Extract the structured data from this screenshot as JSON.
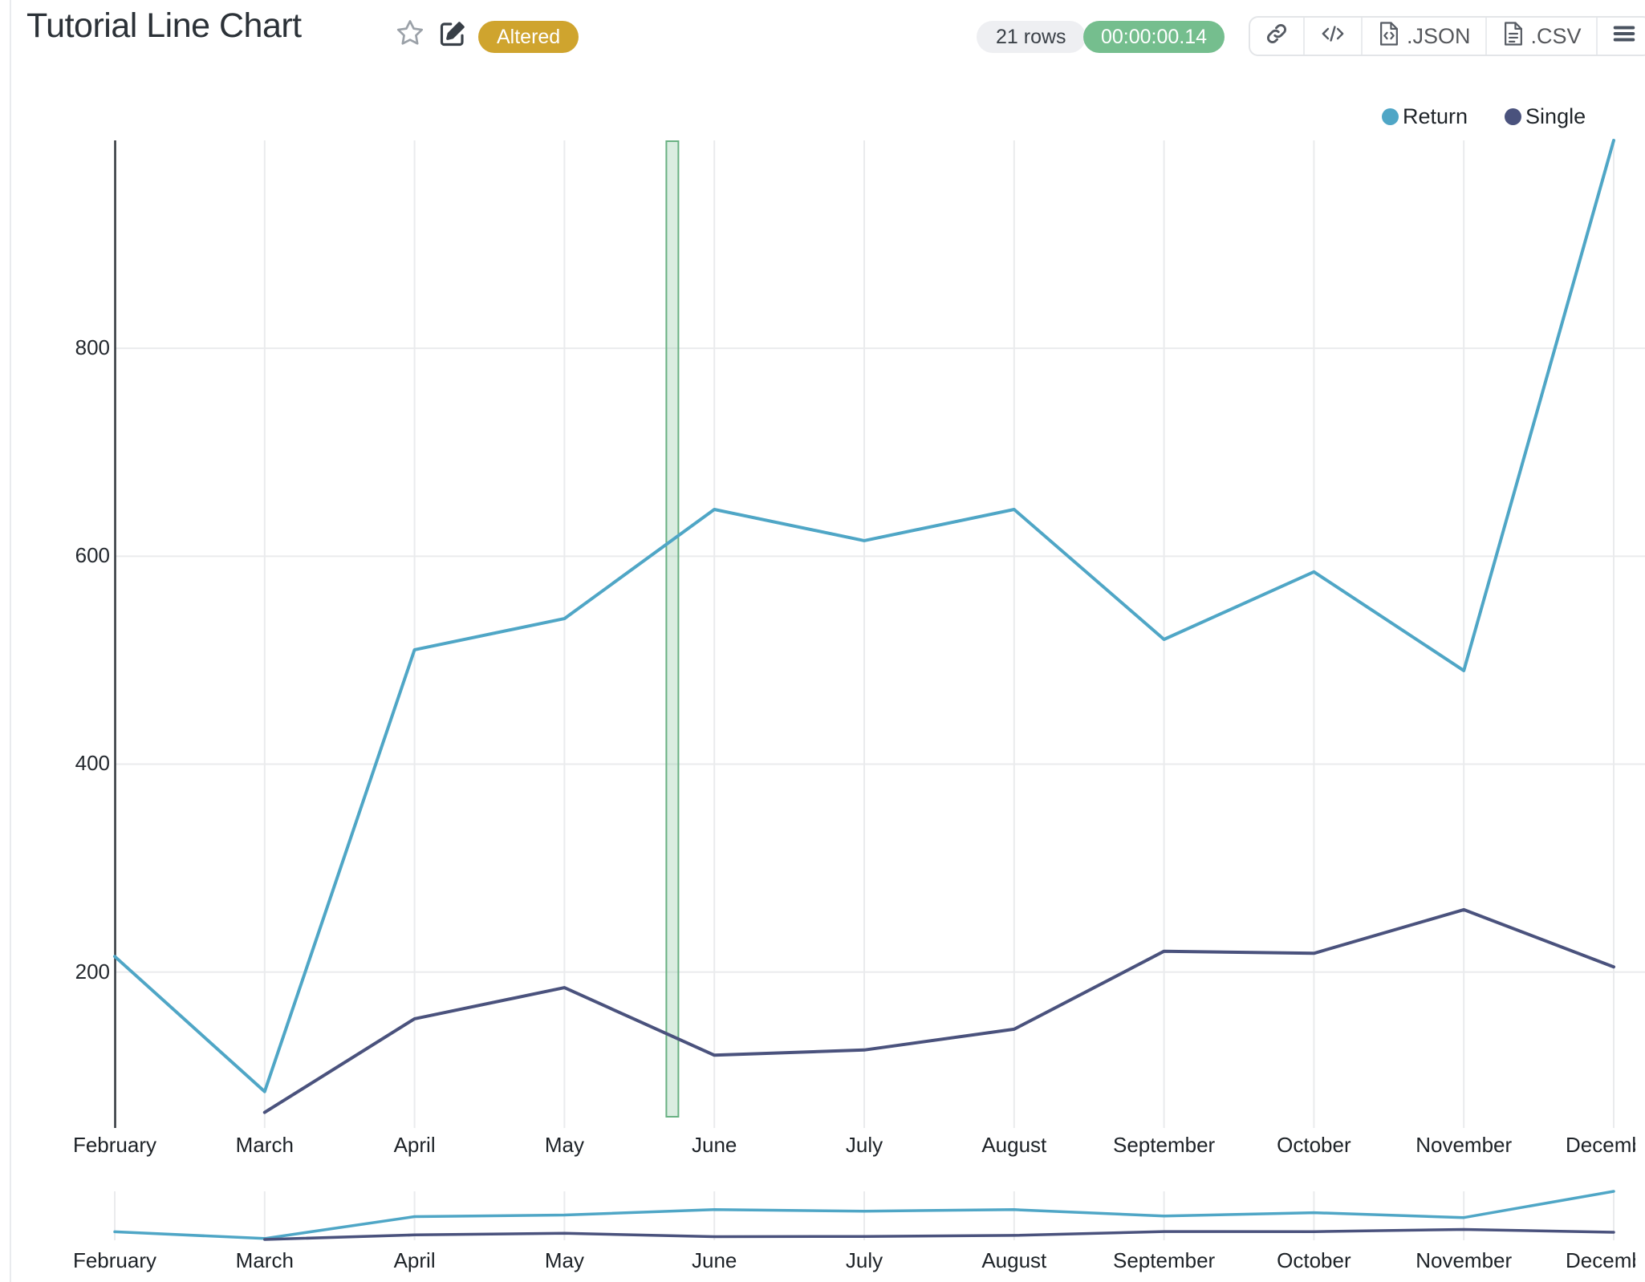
{
  "header": {
    "title": "Tutorial Line Chart",
    "status_badge": "Altered",
    "rows_label": "21 rows",
    "timer": "00:00:00.14"
  },
  "toolbar": {
    "buttons": [
      {
        "icon": "link-icon",
        "label": ""
      },
      {
        "icon": "embed-code-icon",
        "label": ""
      },
      {
        "icon": "file-code-icon",
        "label": ".JSON"
      },
      {
        "icon": "file-text-icon",
        "label": ".CSV"
      },
      {
        "icon": "menu-icon",
        "label": ""
      }
    ]
  },
  "legend": {
    "items": [
      {
        "label": "Return",
        "color": "#4fa6c6"
      },
      {
        "label": "Single",
        "color": "#4a527d"
      }
    ]
  },
  "chart_data": {
    "type": "line",
    "title": "Tutorial Line Chart",
    "xlabel": "",
    "ylabel": "",
    "categories": [
      "February",
      "March",
      "April",
      "May",
      "June",
      "July",
      "August",
      "September",
      "October",
      "November",
      "December"
    ],
    "series": [
      {
        "name": "Return",
        "color": "#4fa6c6",
        "values": [
          215,
          85,
          510,
          540,
          645,
          615,
          645,
          520,
          585,
          490,
          1000
        ]
      },
      {
        "name": "Single",
        "color": "#4a527d",
        "values": [
          null,
          65,
          155,
          185,
          120,
          125,
          145,
          220,
          218,
          260,
          205
        ]
      }
    ],
    "y_ticks": [
      200,
      400,
      600,
      800
    ],
    "ylim": [
      50,
      1000
    ],
    "grid": true,
    "legend_position": "top-right",
    "highlight_band": {
      "between": [
        "May",
        "June"
      ],
      "category_position": 3.72,
      "color": "#69b183"
    },
    "mini_chart": true,
    "colors": {
      "grid_line": "#eaebed",
      "axis_line": "#30363c",
      "band_fill": "#84c49a"
    }
  }
}
